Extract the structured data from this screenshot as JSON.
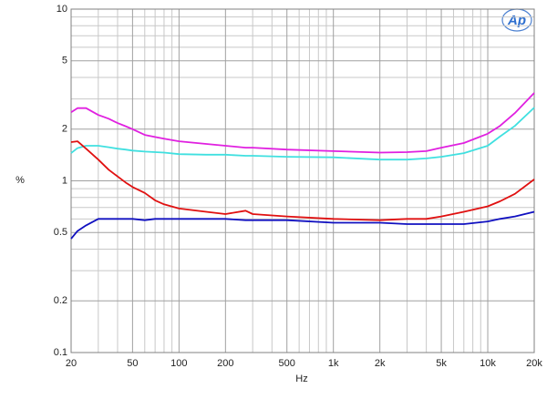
{
  "chart_data": {
    "type": "line",
    "xlabel": "Hz",
    "ylabel": "%",
    "logo": "Ap",
    "xscale": "log",
    "yscale": "log",
    "grid": true,
    "x": [
      20,
      22,
      25,
      30,
      35,
      40,
      45,
      50,
      60,
      70,
      80,
      100,
      150,
      200,
      270,
      300,
      500,
      1000,
      2000,
      3000,
      4000,
      5000,
      7000,
      10000,
      12000,
      15000,
      20000
    ],
    "series": [
      {
        "color": "#e020e0",
        "values": [
          2.51,
          2.65,
          2.65,
          2.42,
          2.3,
          2.17,
          2.08,
          2.0,
          1.85,
          1.8,
          1.76,
          1.7,
          1.64,
          1.6,
          1.56,
          1.56,
          1.52,
          1.49,
          1.46,
          1.47,
          1.49,
          1.56,
          1.66,
          1.88,
          2.09,
          2.48,
          3.25
        ]
      },
      {
        "color": "#40e0e0",
        "values": [
          1.45,
          1.55,
          1.6,
          1.6,
          1.57,
          1.54,
          1.52,
          1.5,
          1.48,
          1.47,
          1.46,
          1.43,
          1.42,
          1.42,
          1.4,
          1.4,
          1.38,
          1.37,
          1.33,
          1.33,
          1.35,
          1.38,
          1.45,
          1.6,
          1.81,
          2.09,
          2.67
        ]
      },
      {
        "color": "#e01010",
        "values": [
          1.68,
          1.7,
          1.54,
          1.33,
          1.16,
          1.06,
          0.98,
          0.92,
          0.85,
          0.77,
          0.73,
          0.69,
          0.66,
          0.64,
          0.67,
          0.64,
          0.62,
          0.6,
          0.59,
          0.6,
          0.6,
          0.62,
          0.66,
          0.71,
          0.76,
          0.84,
          1.02
        ]
      },
      {
        "color": "#1010c0",
        "values": [
          0.46,
          0.51,
          0.55,
          0.6,
          0.6,
          0.6,
          0.6,
          0.6,
          0.59,
          0.6,
          0.6,
          0.6,
          0.6,
          0.6,
          0.59,
          0.59,
          0.59,
          0.57,
          0.57,
          0.56,
          0.56,
          0.56,
          0.56,
          0.58,
          0.6,
          0.62,
          0.66
        ]
      }
    ],
    "xlim": [
      20,
      20000
    ],
    "xticks": [
      20,
      50,
      100,
      200,
      500,
      {
        "value": 1000,
        "label": "1k"
      },
      {
        "value": 2000,
        "label": "2k"
      },
      {
        "value": 5000,
        "label": "5k"
      },
      {
        "value": 10000,
        "label": "10k"
      },
      {
        "value": 20000,
        "label": "20k"
      }
    ],
    "xminor": [
      30,
      40,
      60,
      70,
      80,
      90,
      300,
      400,
      600,
      700,
      800,
      900,
      3000,
      4000,
      6000,
      7000,
      8000,
      9000
    ],
    "ylim": [
      0.1,
      10
    ],
    "yticks": [
      0.1,
      0.2,
      0.5,
      1,
      2,
      5,
      10
    ],
    "yminor": [
      0.3,
      0.4,
      0.6,
      0.7,
      0.8,
      0.9,
      3,
      4,
      6,
      7,
      8,
      9
    ]
  }
}
